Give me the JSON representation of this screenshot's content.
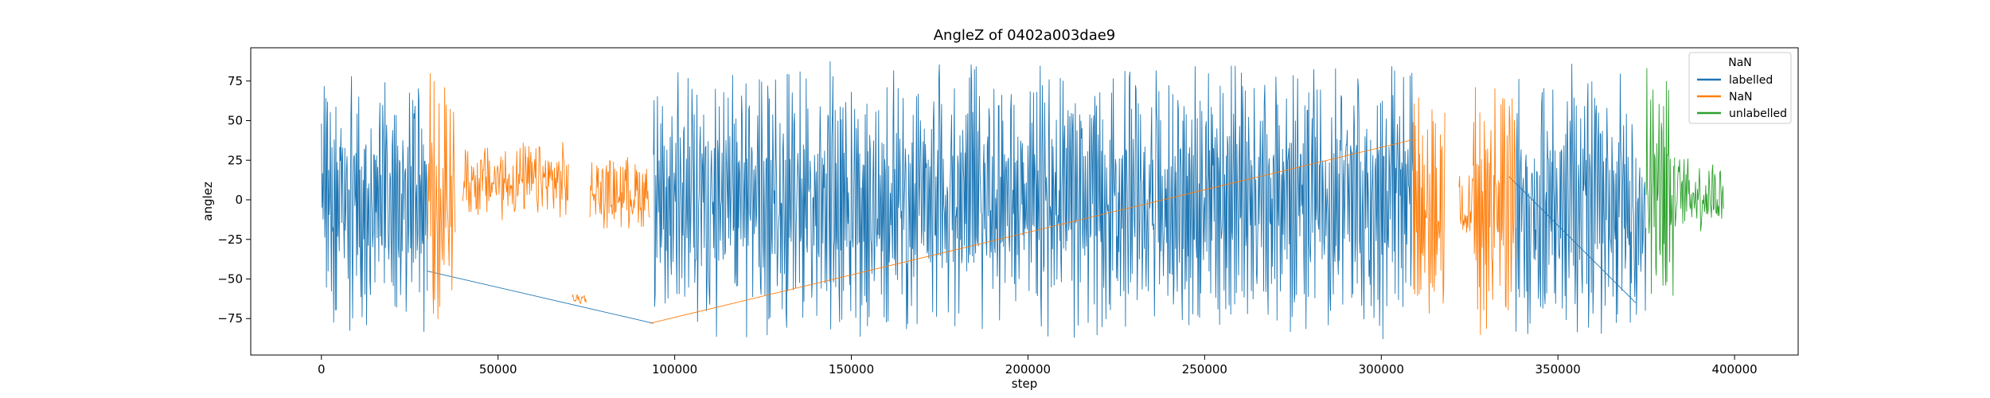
{
  "chart_data": {
    "type": "line",
    "title": "AngleZ of 0402a003dae9",
    "xlabel": "step",
    "ylabel": "anglez",
    "xlim": [
      -20000,
      418000
    ],
    "ylim": [
      -98,
      96
    ],
    "xticks": [
      0,
      50000,
      100000,
      150000,
      200000,
      250000,
      300000,
      350000,
      400000
    ],
    "xtick_labels": [
      "0",
      "50000",
      "100000",
      "150000",
      "200000",
      "250000",
      "300000",
      "350000",
      "400000"
    ],
    "yticks": [
      -75,
      -50,
      -25,
      0,
      25,
      50,
      75
    ],
    "ytick_labels": [
      "−75",
      "−50",
      "−25",
      "0",
      "25",
      "50",
      "75"
    ],
    "grid": false,
    "legend": {
      "title": "NaN",
      "placement": "top-right",
      "entries": [
        {
          "label": "labelled",
          "color": "#1f77b4"
        },
        {
          "label": "NaN",
          "color": "#ff7f0e"
        },
        {
          "label": "unlabelled",
          "color": "#2ca02c"
        }
      ]
    },
    "series": [
      {
        "name": "labelled",
        "color": "#1f77b4",
        "segments": [
          {
            "x": [
              0,
              30000
            ],
            "y_range": [
              -87,
              87
            ],
            "style": "dense-wide"
          },
          {
            "x": [
              94000,
              309000
            ],
            "y_range": [
              -89,
              88
            ],
            "style": "dense-wide"
          },
          {
            "x": [
              338000,
              375000
            ],
            "y_range": [
              -88,
              87
            ],
            "style": "dense-wide"
          }
        ],
        "connectors": [
          {
            "x": [
              30000,
              94000
            ],
            "y": [
              -45,
              -78
            ]
          },
          {
            "x": [
              336000,
              372000
            ],
            "y": [
              15,
              -65
            ]
          }
        ]
      },
      {
        "name": "NaN",
        "color": "#ff7f0e",
        "segments": [
          {
            "x": [
              30000,
              38000
            ],
            "y_range": [
              -85,
              83
            ],
            "style": "dense-wide"
          },
          {
            "x": [
              40000,
              70000
            ],
            "y_range": [
              -15,
              38
            ],
            "style": "noise"
          },
          {
            "x": [
              71000,
              75000
            ],
            "y_range": [
              -66,
              -59
            ],
            "style": "noise"
          },
          {
            "x": [
              76000,
              93000
            ],
            "y_range": [
              -20,
              30
            ],
            "style": "noise"
          },
          {
            "x": [
              309000,
              318000
            ],
            "y_range": [
              -85,
              75
            ],
            "style": "dense-wide"
          },
          {
            "x": [
              322000,
              326000
            ],
            "y_range": [
              -30,
              25
            ],
            "style": "noise"
          },
          {
            "x": [
              326000,
              338000
            ],
            "y_range": [
              -90,
              85
            ],
            "style": "dense-wide"
          }
        ],
        "connectors": [
          {
            "x": [
              93000,
              309000
            ],
            "y": [
              -78,
              38
            ]
          }
        ]
      },
      {
        "name": "unlabelled",
        "color": "#2ca02c",
        "segments": [
          {
            "x": [
              375000,
              383000
            ],
            "y_range": [
              -80,
              86
            ],
            "style": "dense-wide"
          },
          {
            "x": [
              383000,
              397000
            ],
            "y_range": [
              -22,
              30
            ],
            "style": "noise"
          }
        ],
        "connectors": []
      }
    ]
  }
}
